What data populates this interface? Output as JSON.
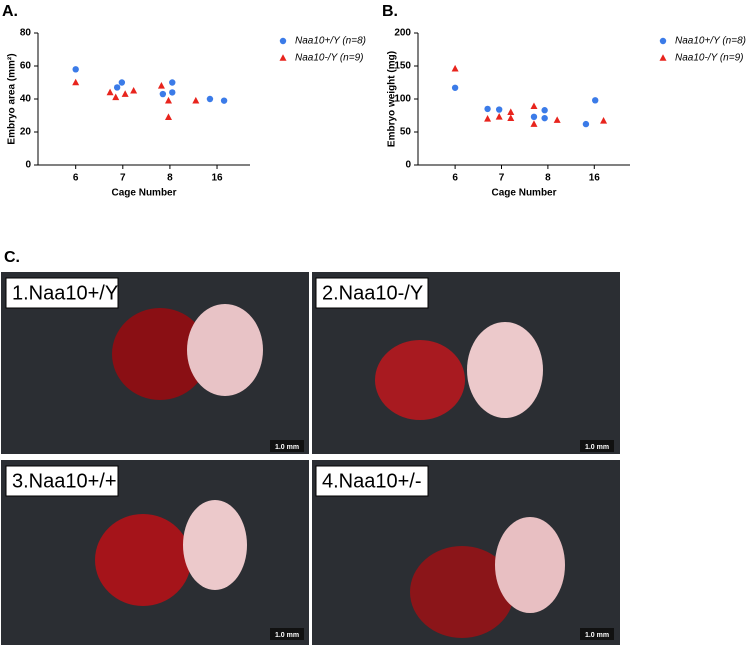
{
  "chart_data": [
    {
      "type": "scatter",
      "panel_label": "A.",
      "xlabel": "Cage Number",
      "ylabel": "Embryo area (mm²)",
      "xlim": [
        0.2,
        4.7
      ],
      "xticks": [
        {
          "value": 1,
          "label": "6"
        },
        {
          "value": 2,
          "label": "7"
        },
        {
          "value": 3,
          "label": "8"
        },
        {
          "value": 4,
          "label": "16"
        }
      ],
      "ylim": [
        0,
        80
      ],
      "yticks": [
        0,
        20,
        40,
        60,
        80
      ],
      "legend": "right",
      "series": [
        {
          "name": "Naa10+/Y (n=8)",
          "color": "#3b7be8",
          "marker": "circle",
          "x": [
            1.0,
            1.88,
            1.98,
            2.85,
            3.05,
            3.05,
            3.85,
            4.15
          ],
          "values": [
            58,
            47,
            50,
            43,
            50,
            44,
            40,
            39
          ]
        },
        {
          "name": "Naa10-/Y (n=9)",
          "color": "#e8241d",
          "marker": "triangle",
          "x": [
            1.0,
            1.73,
            1.85,
            2.05,
            2.23,
            2.82,
            2.97,
            2.97,
            3.55
          ],
          "values": [
            50,
            44,
            41,
            43,
            45,
            48,
            39,
            29,
            39
          ]
        }
      ]
    },
    {
      "type": "scatter",
      "panel_label": "B.",
      "xlabel": "Cage Number",
      "ylabel": "Embryo weight (mg)",
      "xlim": [
        0.2,
        4.77
      ],
      "xticks": [
        {
          "value": 1,
          "label": "6"
        },
        {
          "value": 2,
          "label": "7"
        },
        {
          "value": 3,
          "label": "8"
        },
        {
          "value": 4,
          "label": "16"
        }
      ],
      "ylim": [
        0,
        200
      ],
      "yticks": [
        0,
        50,
        100,
        150,
        200
      ],
      "legend": "right",
      "series": [
        {
          "name": "Naa10+/Y (n=8)",
          "color": "#3b7be8",
          "marker": "circle",
          "x": [
            1.0,
            1.7,
            1.95,
            2.7,
            2.93,
            2.93,
            3.82,
            4.02
          ],
          "values": [
            117,
            85,
            84,
            73,
            83,
            71,
            62,
            98
          ]
        },
        {
          "name": "Naa10-/Y (n=9)",
          "color": "#e8241d",
          "marker": "triangle",
          "x": [
            1.0,
            1.7,
            1.95,
            2.2,
            2.2,
            2.7,
            2.7,
            3.2,
            4.2
          ],
          "values": [
            146,
            70,
            73,
            80,
            71,
            89,
            62,
            68,
            67
          ]
        }
      ]
    }
  ],
  "photos": {
    "panel_label": "C.",
    "items": [
      {
        "label": "1.Naa10+/Y",
        "scale": "1.0 mm"
      },
      {
        "label": "2.Naa10-/Y",
        "scale": "1.0 mm"
      },
      {
        "label": "3.Naa10+/+",
        "scale": "1.0 mm"
      },
      {
        "label": "4.Naa10+/-",
        "scale": "1.0 mm"
      }
    ]
  }
}
